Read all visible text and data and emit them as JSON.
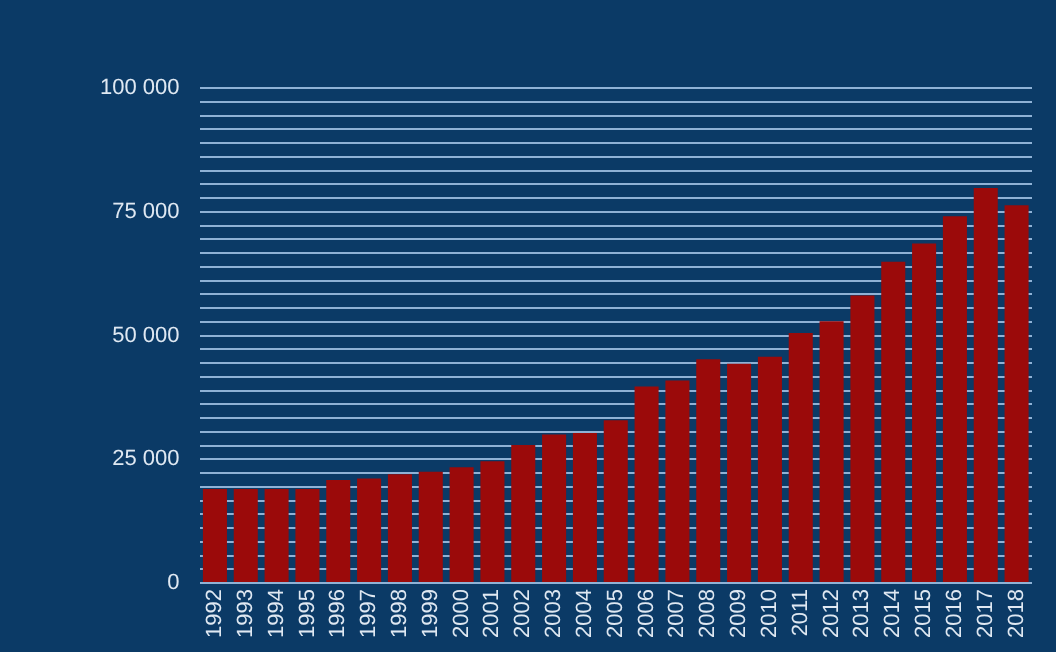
{
  "chart_data": {
    "type": "bar",
    "categories": [
      "1992",
      "1993",
      "1994",
      "1995",
      "1996",
      "1997",
      "1998",
      "1999",
      "2000",
      "2001",
      "2002",
      "2003",
      "2004",
      "2005",
      "2006",
      "2007",
      "2008",
      "2009",
      "2010",
      "2011",
      "2012",
      "2013",
      "2014",
      "2015",
      "2016",
      "2017",
      "2018"
    ],
    "values": [
      19000,
      19000,
      19000,
      19000,
      20800,
      21100,
      22000,
      22500,
      23400,
      24600,
      27900,
      30000,
      30300,
      32900,
      39700,
      40900,
      45200,
      44300,
      45700,
      50500,
      52900,
      58100,
      64900,
      68600,
      74100,
      79800,
      76300
    ],
    "color": "#9b0a0a",
    "ylim": [
      0,
      100000
    ],
    "yticks": [
      {
        "value": 0,
        "label": "0"
      },
      {
        "value": 2777.8,
        "label": null
      },
      {
        "value": 5555.6,
        "label": null
      },
      {
        "value": 8333.3,
        "label": null
      },
      {
        "value": 11111.1,
        "label": null
      },
      {
        "value": 13888.9,
        "label": null
      },
      {
        "value": 16666.7,
        "label": null
      },
      {
        "value": 19444.4,
        "label": null
      },
      {
        "value": 22222.2,
        "label": null
      },
      {
        "value": 25000,
        "label": "25 000"
      },
      {
        "value": 27777.8,
        "label": null
      },
      {
        "value": 30555.6,
        "label": null
      },
      {
        "value": 33333.3,
        "label": null
      },
      {
        "value": 36111.1,
        "label": null
      },
      {
        "value": 38888.9,
        "label": null
      },
      {
        "value": 41666.7,
        "label": null
      },
      {
        "value": 44444.4,
        "label": null
      },
      {
        "value": 47222.2,
        "label": null
      },
      {
        "value": 50000,
        "label": "50 000"
      },
      {
        "value": 52777.8,
        "label": null
      },
      {
        "value": 55555.6,
        "label": null
      },
      {
        "value": 58333.3,
        "label": null
      },
      {
        "value": 61111.1,
        "label": null
      },
      {
        "value": 63888.9,
        "label": null
      },
      {
        "value": 66666.7,
        "label": null
      },
      {
        "value": 69444.4,
        "label": null
      },
      {
        "value": 72222.2,
        "label": null
      },
      {
        "value": 75000,
        "label": "75 000"
      },
      {
        "value": 77777.8,
        "label": null
      },
      {
        "value": 80555.6,
        "label": null
      },
      {
        "value": 83333.3,
        "label": null
      },
      {
        "value": 86111.1,
        "label": null
      },
      {
        "value": 88888.9,
        "label": null
      },
      {
        "value": 91666.7,
        "label": null
      },
      {
        "value": 94444.4,
        "label": null
      },
      {
        "value": 97222.2,
        "label": null
      },
      {
        "value": 100000,
        "label": "100 000"
      }
    ],
    "grid": "y",
    "legend": false
  }
}
